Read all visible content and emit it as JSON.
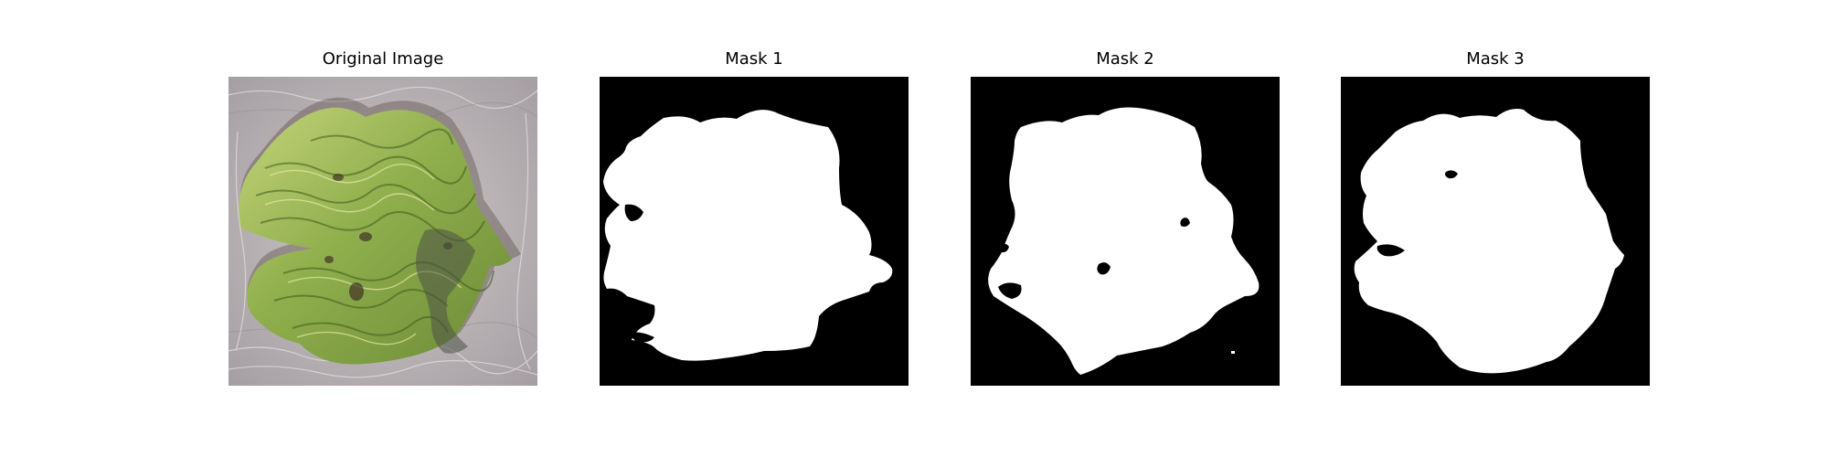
{
  "figure": {
    "panels": [
      {
        "title": "Original Image",
        "kind": "photo"
      },
      {
        "title": "Mask 1",
        "kind": "mask"
      },
      {
        "title": "Mask 2",
        "kind": "mask"
      },
      {
        "title": "Mask 3",
        "kind": "mask"
      }
    ]
  },
  "colors": {
    "background": "#ffffff",
    "mask_background": "#000000",
    "mask_foreground": "#ffffff",
    "leaf_green": "#9bb552",
    "leaf_dark": "#5b7a2e",
    "stone_gray": "#b7b1b4"
  }
}
